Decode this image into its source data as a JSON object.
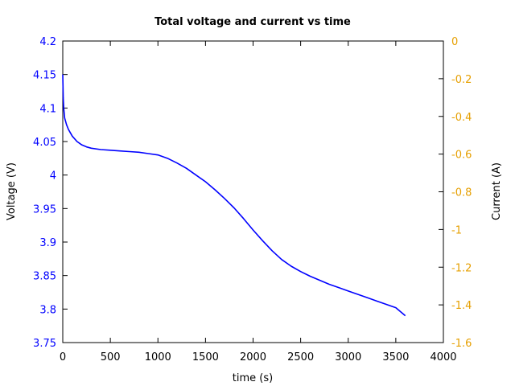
{
  "chart_data": {
    "type": "line",
    "title": "Total voltage and current vs time",
    "xlabel": "time (s)",
    "ylabel": "Voltage (V)",
    "y2label": "Current (A)",
    "xlim": [
      0,
      4000
    ],
    "ylim": [
      3.75,
      4.2
    ],
    "y2lim": [
      -1.6,
      0
    ],
    "xticks": [
      "0",
      "500",
      "1000",
      "1500",
      "2000",
      "2500",
      "3000",
      "3500",
      "4000"
    ],
    "yticks": [
      "3.75",
      "3.8",
      "3.85",
      "3.9",
      "3.95",
      "4",
      "4.05",
      "4.1",
      "4.15",
      "4.2"
    ],
    "y2ticks": [
      "0",
      "-0.2",
      "-0.4",
      "-0.6",
      "-0.8",
      "-1",
      "-1.2",
      "-1.4",
      "-1.6"
    ],
    "grid": false,
    "colors": {
      "voltage": "#0000ff",
      "left_axis_ticks": "#0000ff",
      "right_axis_ticks": "#e69f00",
      "frame": "#000000"
    },
    "series": [
      {
        "axis": "left",
        "x": [
          0,
          5,
          10,
          20,
          40,
          60,
          80,
          100,
          150,
          200,
          250,
          300,
          400,
          500,
          600,
          700,
          800,
          900,
          1000,
          1100,
          1200,
          1300,
          1400,
          1500,
          1600,
          1700,
          1800,
          1900,
          2000,
          2100,
          2200,
          2300,
          2400,
          2500,
          2600,
          2700,
          2800,
          2900,
          3000,
          3100,
          3200,
          3300,
          3400,
          3500,
          3600
        ],
        "y": [
          4.15,
          4.115,
          4.1,
          4.085,
          4.075,
          4.068,
          4.063,
          4.058,
          4.05,
          4.045,
          4.042,
          4.04,
          4.038,
          4.037,
          4.036,
          4.035,
          4.034,
          4.032,
          4.03,
          4.025,
          4.018,
          4.01,
          4.0,
          3.99,
          3.978,
          3.965,
          3.951,
          3.935,
          3.918,
          3.902,
          3.887,
          3.874,
          3.864,
          3.856,
          3.849,
          3.843,
          3.837,
          3.832,
          3.827,
          3.822,
          3.817,
          3.812,
          3.807,
          3.802,
          3.79
        ]
      }
    ]
  }
}
